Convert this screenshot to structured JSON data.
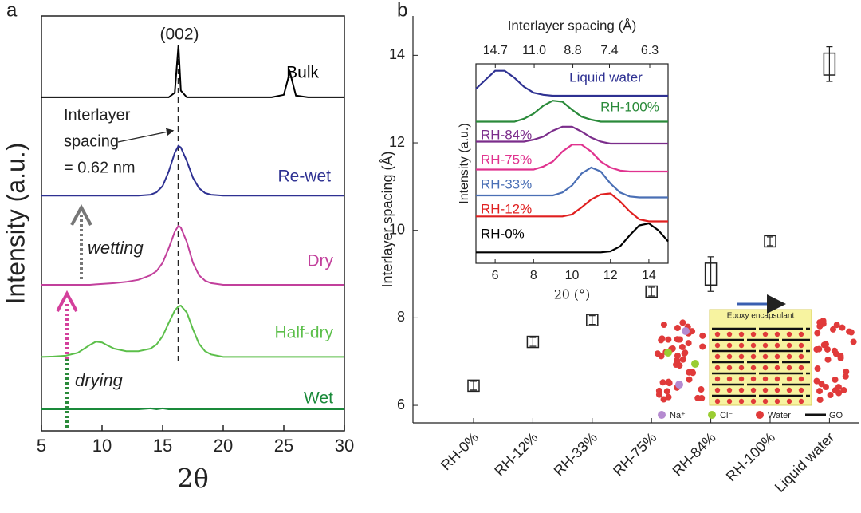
{
  "chart_data": [
    {
      "type": "line",
      "panel_label": "a",
      "xlabel": "2θ",
      "ylabel": "Intensity (a.u.)",
      "xlim": [
        5,
        30
      ],
      "xticks": [
        5,
        10,
        15,
        20,
        25,
        30
      ],
      "ylim": [
        0,
        100
      ],
      "reference_line_x": 16.3,
      "annotations": {
        "peak": "(002)",
        "spacing": [
          "Interlayer",
          "spacing",
          "= 0.62 nm"
        ],
        "wetting": "wetting",
        "drying": "drying"
      },
      "x": [
        5,
        6,
        7,
        8,
        9,
        9.5,
        10,
        10.5,
        11,
        12,
        13,
        14,
        14.5,
        15,
        15.5,
        16,
        16.3,
        16.5,
        17,
        17.5,
        18,
        18.5,
        19,
        20,
        21,
        22,
        23,
        24,
        25,
        25.5,
        26,
        27,
        28,
        29,
        30
      ],
      "series": [
        {
          "name": "Bulk",
          "color": "#000000",
          "values": [
            80.4,
            80.4,
            80.4,
            80.4,
            80.4,
            80.4,
            80.4,
            80.4,
            80.4,
            80.4,
            80.4,
            80.4,
            80.4,
            80.4,
            80.4,
            81.5,
            93,
            82,
            80.4,
            80.4,
            80.4,
            80.4,
            80.4,
            80.4,
            80.4,
            80.4,
            80.4,
            80.4,
            81,
            86.5,
            80.8,
            80.4,
            80.4,
            80.4,
            80.4
          ]
        },
        {
          "name": "Re-wet",
          "color": "#2e3192",
          "values": [
            56.7,
            56.7,
            56.7,
            56.7,
            56.7,
            56.7,
            56.7,
            56.7,
            56.7,
            56.7,
            56.7,
            56.9,
            57.5,
            59,
            62.5,
            67,
            68.7,
            68.3,
            65,
            61,
            58.5,
            57.3,
            56.9,
            56.7,
            56.7,
            56.7,
            56.7,
            56.7,
            56.7,
            56.7,
            56.7,
            56.7,
            56.7,
            56.7,
            56.7
          ]
        },
        {
          "name": "Dry",
          "color": "#c2409c",
          "values": [
            35.2,
            35.2,
            35.2,
            35.2,
            35.2,
            35.3,
            35.4,
            35.5,
            35.6,
            35.9,
            36.4,
            37.5,
            38.5,
            40.5,
            44,
            48,
            49.4,
            49,
            45.5,
            40.5,
            37.5,
            36.2,
            35.6,
            35.2,
            35.2,
            35.2,
            35.2,
            35.2,
            35.2,
            35.2,
            35.2,
            35.2,
            35.2,
            35.2,
            35.2
          ]
        },
        {
          "name": "Half-dry",
          "color": "#5cbf4a",
          "values": [
            17.8,
            17.9,
            18.1,
            18.8,
            20.7,
            21.5,
            21.3,
            20.5,
            19.8,
            19.2,
            19.2,
            19.8,
            20.8,
            22.8,
            26,
            29,
            30,
            30.2,
            28.5,
            24.5,
            21,
            19.2,
            18.4,
            17.8,
            17.8,
            17.8,
            17.8,
            17.8,
            17.8,
            17.8,
            17.8,
            17.8,
            17.8,
            17.8,
            17.8
          ]
        },
        {
          "name": "Wet",
          "color": "#1a8a3a",
          "values": [
            5.2,
            5.2,
            5.2,
            5.2,
            5.2,
            5.2,
            5.2,
            5.2,
            5.2,
            5.2,
            5.2,
            5.4,
            5.2,
            5.4,
            5.2,
            5.2,
            5.2,
            5.2,
            5.2,
            5.2,
            5.2,
            5.2,
            5.2,
            5.2,
            5.2,
            5.2,
            5.2,
            5.2,
            5.2,
            5.2,
            5.2,
            5.2,
            5.2,
            5.2,
            5.2
          ]
        }
      ]
    },
    {
      "type": "errorbar",
      "panel_label": "b",
      "ylabel": "Interlayer spacing (Å)",
      "categories": [
        "RH-0%",
        "RH-12%",
        "RH-33%",
        "RH-75%",
        "RH-84%",
        "RH-100%",
        "Liquid water"
      ],
      "values": [
        6.45,
        7.45,
        7.95,
        8.6,
        9.0,
        9.75,
        13.8
      ],
      "errors": [
        0.1,
        0.1,
        0.1,
        0.1,
        0.25,
        0.1,
        0.25
      ],
      "ylim": [
        5.6,
        14.9
      ],
      "yticks": [
        6,
        8,
        10,
        12,
        14
      ]
    },
    {
      "type": "line",
      "xlabel": "2θ (°)",
      "ylabel": "Intensity (a.u.)",
      "x2label": "Interlayer spacing (Å)",
      "xlim": [
        5,
        15
      ],
      "xticks": [
        6,
        8,
        10,
        12,
        14
      ],
      "x2ticks": [
        14.7,
        {
          "value": 11,
          "label": "11.0"
        },
        8.8,
        7.4,
        6.3
      ],
      "ylim": [
        0,
        10
      ],
      "x": [
        5,
        5.5,
        6,
        6.5,
        7,
        7.5,
        8,
        8.5,
        9,
        9.5,
        10,
        10.5,
        11,
        11.5,
        12,
        12.5,
        13,
        13.5,
        14,
        14.5,
        15
      ],
      "series": [
        {
          "name": "Liquid water",
          "color": "#2e3192",
          "values": [
            8.75,
            9.2,
            9.65,
            9.65,
            9.3,
            8.85,
            8.55,
            8.45,
            8.4,
            8.4,
            8.4,
            8.4,
            8.4,
            8.4,
            8.4,
            8.4,
            8.4,
            8.4,
            8.4,
            8.4,
            8.4
          ]
        },
        {
          "name": "RH-100%",
          "color": "#2a8a3a",
          "values": [
            7.1,
            7.1,
            7.1,
            7.1,
            7.1,
            7.25,
            7.5,
            7.9,
            8.15,
            8.1,
            7.7,
            7.35,
            7.2,
            7.1,
            7.1,
            7.1,
            7.1,
            7.1,
            7.1,
            7.1,
            7.1
          ]
        },
        {
          "name": "RH-84%",
          "color": "#7b2d8b",
          "values": [
            6.1,
            6.1,
            6.1,
            6.1,
            6.1,
            6.1,
            6.2,
            6.35,
            6.65,
            6.85,
            6.85,
            6.6,
            6.3,
            6.1,
            6.0,
            6.0,
            6.0,
            6.0,
            6.0,
            6.0,
            6.0
          ]
        },
        {
          "name": "RH-75%",
          "color": "#e0338f",
          "values": [
            4.7,
            4.7,
            4.7,
            4.7,
            4.7,
            4.7,
            4.7,
            4.85,
            5.1,
            5.6,
            5.95,
            5.95,
            5.6,
            5.1,
            4.8,
            4.65,
            4.6,
            4.6,
            4.6,
            4.6,
            4.6
          ]
        },
        {
          "name": "RH-33%",
          "color": "#4a6fb5",
          "values": [
            3.4,
            3.4,
            3.4,
            3.4,
            3.4,
            3.4,
            3.4,
            3.4,
            3.4,
            3.55,
            3.9,
            4.5,
            4.8,
            4.6,
            4.0,
            3.55,
            3.35,
            3.3,
            3.3,
            3.3,
            3.3
          ]
        },
        {
          "name": "RH-12%",
          "color": "#e02020",
          "values": [
            2.35,
            2.35,
            2.35,
            2.35,
            2.35,
            2.35,
            2.35,
            2.35,
            2.35,
            2.35,
            2.45,
            2.8,
            3.2,
            3.45,
            3.5,
            3.1,
            2.6,
            2.2,
            2.1,
            2.1,
            2.1
          ]
        },
        {
          "name": "RH-0%",
          "color": "#000000",
          "values": [
            0.55,
            0.55,
            0.55,
            0.55,
            0.55,
            0.55,
            0.55,
            0.55,
            0.55,
            0.55,
            0.55,
            0.55,
            0.55,
            0.55,
            0.6,
            0.85,
            1.4,
            1.9,
            2.0,
            1.65,
            1.1
          ]
        }
      ]
    }
  ],
  "schematic": {
    "title": "Epoxy encapsulant",
    "legend": [
      "Na⁺",
      "Cl⁻",
      "Water",
      "GO"
    ]
  }
}
